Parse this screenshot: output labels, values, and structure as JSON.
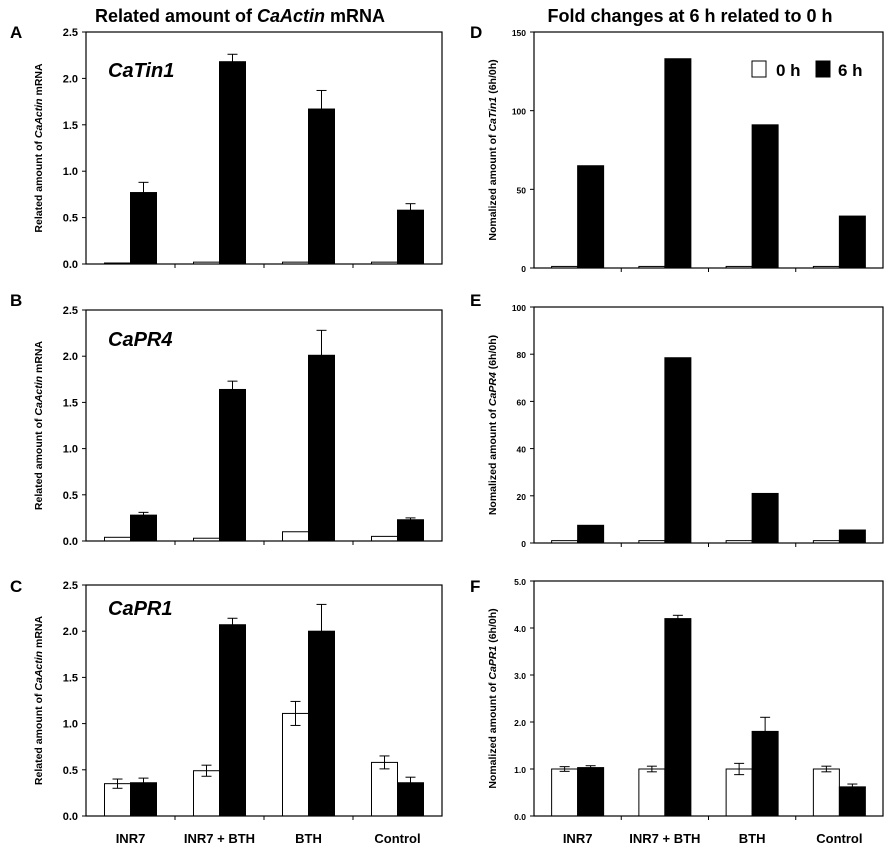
{
  "headers": {
    "left_prefix": "Related amount of ",
    "left_italic": "CaActin",
    "left_suffix": " mRNA",
    "right": "Fold changes at 6 h related to 0 h"
  },
  "legend": [
    {
      "label": "0 h",
      "color": "#ffffff"
    },
    {
      "label": "6 h",
      "color": "#000000"
    }
  ],
  "categories": [
    "INR7",
    "INR7 + BTH",
    "BTH",
    "Control"
  ],
  "chart_data": [
    {
      "panel": "A",
      "type": "bar",
      "gene_label": "CaTin1",
      "ylabel_parts": [
        "Related amount of ",
        "CaActin",
        " mRNA"
      ],
      "ylim": [
        0,
        2.5
      ],
      "yticks": [
        "0.0",
        "0.5",
        "1.0",
        "1.5",
        "2.0",
        "2.5"
      ],
      "series": [
        {
          "name": "0 h",
          "values": [
            0.01,
            0.02,
            0.02,
            0.02
          ],
          "errors": [
            0,
            0,
            0,
            0
          ]
        },
        {
          "name": "6 h",
          "values": [
            0.77,
            2.18,
            1.67,
            0.58
          ],
          "errors": [
            0.11,
            0.08,
            0.2,
            0.07
          ]
        }
      ]
    },
    {
      "panel": "B",
      "type": "bar",
      "gene_label": "CaPR4",
      "ylabel_parts": [
        "Related amount of ",
        "CaActin",
        " mRNA"
      ],
      "ylim": [
        0,
        2.5
      ],
      "yticks": [
        "0.0",
        "0.5",
        "1.0",
        "1.5",
        "2.0",
        "2.5"
      ],
      "series": [
        {
          "name": "0 h",
          "values": [
            0.04,
            0.03,
            0.1,
            0.05
          ],
          "errors": [
            0,
            0,
            0,
            0
          ]
        },
        {
          "name": "6 h",
          "values": [
            0.28,
            1.64,
            2.01,
            0.23
          ],
          "errors": [
            0.03,
            0.09,
            0.27,
            0.02
          ]
        }
      ]
    },
    {
      "panel": "C",
      "type": "bar",
      "gene_label": "CaPR1",
      "ylabel_parts": [
        "Related amount of ",
        "CaActin",
        " mRNA"
      ],
      "ylim": [
        0,
        2.5
      ],
      "yticks": [
        "0.0",
        "0.5",
        "1.0",
        "1.5",
        "2.0",
        "2.5"
      ],
      "series": [
        {
          "name": "0 h",
          "values": [
            0.35,
            0.49,
            1.11,
            0.58
          ],
          "errors": [
            0.05,
            0.06,
            0.13,
            0.07
          ]
        },
        {
          "name": "6 h",
          "values": [
            0.36,
            2.07,
            2.0,
            0.36
          ],
          "errors": [
            0.05,
            0.07,
            0.29,
            0.06
          ]
        }
      ]
    },
    {
      "panel": "D",
      "type": "bar",
      "gene_label": "",
      "ylabel_parts": [
        "Nomalized  amount of ",
        "CaTin1",
        " (6h/0h)"
      ],
      "ylim": [
        0,
        150
      ],
      "yticks": [
        "0",
        "50",
        "100",
        "150"
      ],
      "series": [
        {
          "name": "0 h",
          "values": [
            1,
            1,
            1,
            1
          ],
          "errors": [
            0,
            0,
            0,
            0
          ]
        },
        {
          "name": "6 h",
          "values": [
            65,
            133,
            91,
            33
          ],
          "errors": [
            0,
            0,
            0,
            0
          ]
        }
      ]
    },
    {
      "panel": "E",
      "type": "bar",
      "gene_label": "",
      "ylabel_parts": [
        "Nomalized  amount of ",
        "CaPR4",
        " (6h/0h)"
      ],
      "ylim": [
        0,
        100
      ],
      "yticks": [
        "0",
        "20",
        "40",
        "60",
        "80",
        "100"
      ],
      "series": [
        {
          "name": "0 h",
          "values": [
            1,
            1,
            1,
            1
          ],
          "errors": [
            0,
            0,
            0,
            0
          ]
        },
        {
          "name": "6 h",
          "values": [
            7.5,
            78.5,
            21,
            5.5
          ],
          "errors": [
            0,
            0,
            0,
            0
          ]
        }
      ]
    },
    {
      "panel": "F",
      "type": "bar",
      "gene_label": "",
      "ylabel_parts": [
        "Nomalized  amount of ",
        "CaPR1",
        " (6h/0h)"
      ],
      "ylim": [
        0,
        5
      ],
      "yticks": [
        "0.0",
        "1.0",
        "2.0",
        "3.0",
        "4.0",
        "5.0"
      ],
      "series": [
        {
          "name": "0 h",
          "values": [
            1.0,
            1.0,
            1.0,
            1.0
          ],
          "errors": [
            0.05,
            0.06,
            0.12,
            0.06
          ]
        },
        {
          "name": "6 h",
          "values": [
            1.03,
            4.2,
            1.8,
            0.62
          ],
          "errors": [
            0.04,
            0.07,
            0.3,
            0.06
          ]
        }
      ]
    }
  ]
}
